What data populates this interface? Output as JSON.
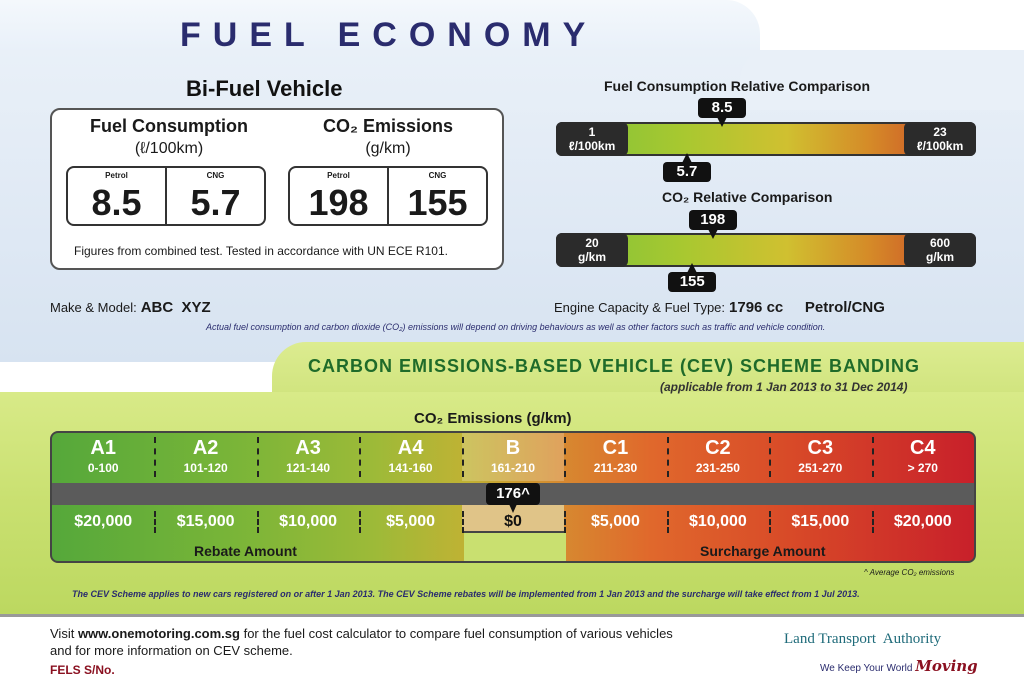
{
  "title": "FUEL ECONOMY",
  "vehicle_type": "Bi-Fuel Vehicle",
  "consumption": {
    "heading": "Fuel Consumption",
    "unit": "(ℓ/100km)",
    "petrol_tag": "Petrol",
    "cng_tag": "CNG",
    "petrol_value": "8.5",
    "cng_value": "5.7"
  },
  "emissions": {
    "heading": "CO₂ Emissions",
    "unit": "(g/km)",
    "petrol_tag": "Petrol",
    "cng_tag": "CNG",
    "petrol_value": "198",
    "cng_value": "155"
  },
  "figures_note": "Figures from combined test. Tested in accordance with UN ECE R101.",
  "fuel_comparison": {
    "title": "Fuel Consumption Relative Comparison",
    "min_value": "1",
    "min_unit": "ℓ/100km",
    "max_value": "23",
    "max_unit": "ℓ/100km",
    "petrol_marker": "8.5",
    "cng_marker": "5.7",
    "petrol_value": 8.5,
    "cng_value": 5.7,
    "range": [
      1,
      23
    ]
  },
  "co2_comparison": {
    "title": "CO₂ Relative Comparison",
    "min_value": "20",
    "min_unit": "g/km",
    "max_value": "600",
    "max_unit": "g/km",
    "petrol_marker": "198",
    "cng_marker": "155",
    "petrol_value": 198,
    "cng_value": 155,
    "range": [
      20,
      600
    ]
  },
  "make_model": {
    "label": "Make & Model:",
    "value": "ABC  XYZ"
  },
  "engine": {
    "label": "Engine Capacity & Fuel Type:",
    "capacity": "1796 cc",
    "fuel": "Petrol/CNG"
  },
  "disclaimer": "Actual fuel consumption and carbon dioxide (CO₂) emissions will depend on driving behaviours as well as other factors such as traffic and vehicle condition.",
  "cev": {
    "title": "CARBON EMISSIONS-BASED VEHICLE (CEV) SCHEME BANDING",
    "subtitle": "(applicable from 1 Jan 2013 to 31 Dec 2014)",
    "co2_heading": "CO₂ Emissions (g/km)",
    "bands": [
      {
        "name": "A1",
        "range": "0-100",
        "amount": "$20,000"
      },
      {
        "name": "A2",
        "range": "101-120",
        "amount": "$15,000"
      },
      {
        "name": "A3",
        "range": "121-140",
        "amount": "$10,000"
      },
      {
        "name": "A4",
        "range": "141-160",
        "amount": "$5,000"
      },
      {
        "name": "B",
        "range": "161-210",
        "amount": "$0"
      },
      {
        "name": "C1",
        "range": "211-230",
        "amount": "$5,000"
      },
      {
        "name": "C2",
        "range": "231-250",
        "amount": "$10,000"
      },
      {
        "name": "C3",
        "range": "251-270",
        "amount": "$15,000"
      },
      {
        "name": "C4",
        "range": "> 270",
        "amount": "$20,000"
      }
    ],
    "marker": "176^",
    "rebate_label": "Rebate Amount",
    "surcharge_label": "Surcharge Amount",
    "avg_note": "^ Average CO₂ emissions",
    "scheme_note": "The CEV Scheme applies to new cars registered on or after 1 Jan 2013. The CEV Scheme rebates will be implemented from 1 Jan 2013 and the surcharge will take effect from 1 Jul 2013."
  },
  "footer": {
    "visit_prefix": "Visit ",
    "visit_url": "www.onemotoring.com.sg",
    "visit_suffix": " for the fuel cost calculator to compare fuel consumption of various vehicles and for more information on CEV scheme.",
    "fels": "FELS S/No.",
    "lta_name": "Land Transport  Authority",
    "lta_tag_prefix": "We Keep Your World",
    "lta_tag_moving": "Moving"
  },
  "colors": {
    "title": "#2a2c6e",
    "cev_title": "#1f6b2a",
    "lta": "#1f6b7a",
    "fels": "#8a1020"
  }
}
